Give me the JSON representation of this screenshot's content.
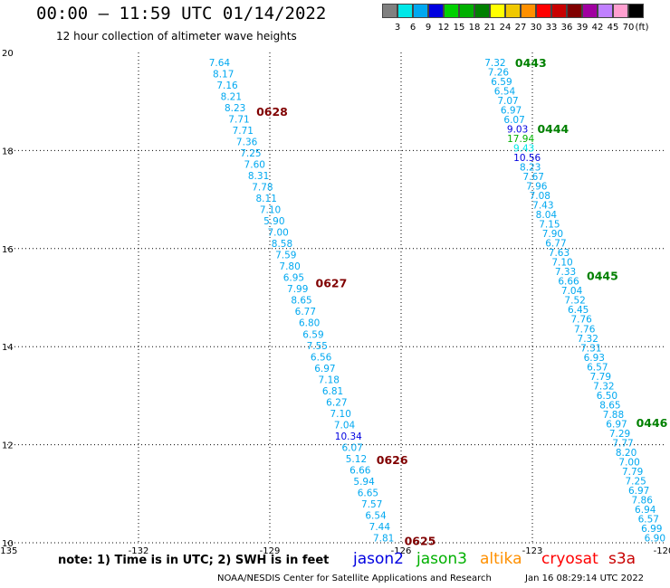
{
  "title": "00:00 – 11:59 UTC 01/14/2022",
  "subtitle": "12 hour collection of altimeter wave heights",
  "legend": {
    "unit_label": "(ft)",
    "bins": [
      {
        "label": "3",
        "color": "#808080"
      },
      {
        "label": "6",
        "color": "#00e8e8"
      },
      {
        "label": "9",
        "color": "#00a8f0"
      },
      {
        "label": "12",
        "color": "#0000e0"
      },
      {
        "label": "15",
        "color": "#00d000"
      },
      {
        "label": "18",
        "color": "#00b000"
      },
      {
        "label": "21",
        "color": "#008000"
      },
      {
        "label": "24",
        "color": "#ffff00"
      },
      {
        "label": "27",
        "color": "#f0c800"
      },
      {
        "label": "30",
        "color": "#ff9000"
      },
      {
        "label": "33",
        "color": "#ff0000"
      },
      {
        "label": "36",
        "color": "#c80000"
      },
      {
        "label": "39",
        "color": "#800000"
      },
      {
        "label": "42",
        "color": "#a000a0"
      },
      {
        "label": "45",
        "color": "#c080ff"
      },
      {
        "label": "70",
        "color": "#ffa0d0"
      },
      {
        "label": "",
        "color": "#000000"
      }
    ]
  },
  "map": {
    "lon_range": [
      -135,
      -120
    ],
    "lat_range": [
      10,
      20
    ],
    "lon_ticks": [
      "-135",
      "-132",
      "-129",
      "-126",
      "-123",
      "-120"
    ],
    "lat_ticks": [
      "20",
      "18",
      "16",
      "14",
      "12",
      "10"
    ],
    "tracks": [
      {
        "satellite": "cryosat",
        "color": "#800000",
        "value_color": "#00a8f0",
        "pass_labels": [
          {
            "text": "0628",
            "lat": 18.8
          },
          {
            "text": "0627",
            "lat": 15.3
          },
          {
            "text": "0626",
            "lat": 11.7
          },
          {
            "text": "0625",
            "lat": 10.05
          }
        ],
        "start": {
          "lat": 19.8,
          "lon": -130.15
        },
        "end": {
          "lat": 10.1,
          "lon": -126.4
        },
        "values": [
          "7.64",
          "8.17",
          "7.16",
          "8.21",
          "8.23",
          "7.71",
          "7.71",
          "7.36",
          "7.25",
          "7.60",
          "8.31",
          "7.78",
          "8.11",
          "7.10",
          "5.90",
          "7.00",
          "8.58",
          "7.59",
          "7.80",
          "6.95",
          "7.99",
          "8.65",
          "6.77",
          "6.80",
          "6.59",
          "7.55",
          "6.56",
          "6.97",
          "7.18",
          "6.81",
          "6.27",
          "7.10",
          "7.04",
          "10.34",
          "6.07",
          "5.12",
          "6.66",
          "5.94",
          "6.65",
          "7.57",
          "6.54",
          "7.44",
          "7.81"
        ],
        "value_colors": {
          "10.34": "#0000e0"
        }
      },
      {
        "satellite": "jason3",
        "color": "#008000",
        "value_color": "#00a8f0",
        "pass_labels": [
          {
            "text": "0443",
            "lat": 19.8
          },
          {
            "text": "0444",
            "lat": 18.45
          },
          {
            "text": "0445",
            "lat": 15.45
          },
          {
            "text": "0446",
            "lat": 12.45
          }
        ],
        "start": {
          "lat": 19.8,
          "lon": -123.85
        },
        "end": {
          "lat": 10.1,
          "lon": -120.2
        },
        "values": [
          "7.32",
          "7.26",
          "6.59",
          "6.54",
          "7.07",
          "6.97",
          "6.07",
          "9.03",
          "17.94",
          "9.43",
          "10.56",
          "8.23",
          "7.67",
          "7.96",
          "7.08",
          "7.43",
          "8.04",
          "7.15",
          "7.90",
          "6.77",
          "7.63",
          "7.10",
          "7.33",
          "6.66",
          "7.04",
          "7.52",
          "6.45",
          "7.76",
          "7.76",
          "7.32",
          "7.31",
          "6.93",
          "6.57",
          "7.79",
          "7.32",
          "6.50",
          "8.65",
          "7.88",
          "6.97",
          "7.29",
          "7.77",
          "8.20",
          "7.00",
          "7.79",
          "7.25",
          "6.97",
          "7.86",
          "6.94",
          "6.57",
          "6.99",
          "6.90"
        ],
        "value_colors": {
          "9.03": "#0000e0",
          "17.94": "#00b000",
          "9.43": "#00e8e8",
          "10.56": "#0000e0"
        }
      }
    ]
  },
  "note": "note:  1) Time is in UTC; 2) SWH is in feet",
  "satellites": [
    {
      "name": "jason2",
      "color": "#0000e0"
    },
    {
      "name": "jason3",
      "color": "#00b000"
    },
    {
      "name": "altika",
      "color": "#ff9000"
    },
    {
      "name": "cryosat",
      "color": "#ff0000"
    },
    {
      "name": "s3a",
      "color": "#c80000"
    }
  ],
  "footer": "NOAA/NESDIS Center for Satellite Applications and Research",
  "footer_timestamp": "Jan 16 08:29:14 UTC 2022"
}
